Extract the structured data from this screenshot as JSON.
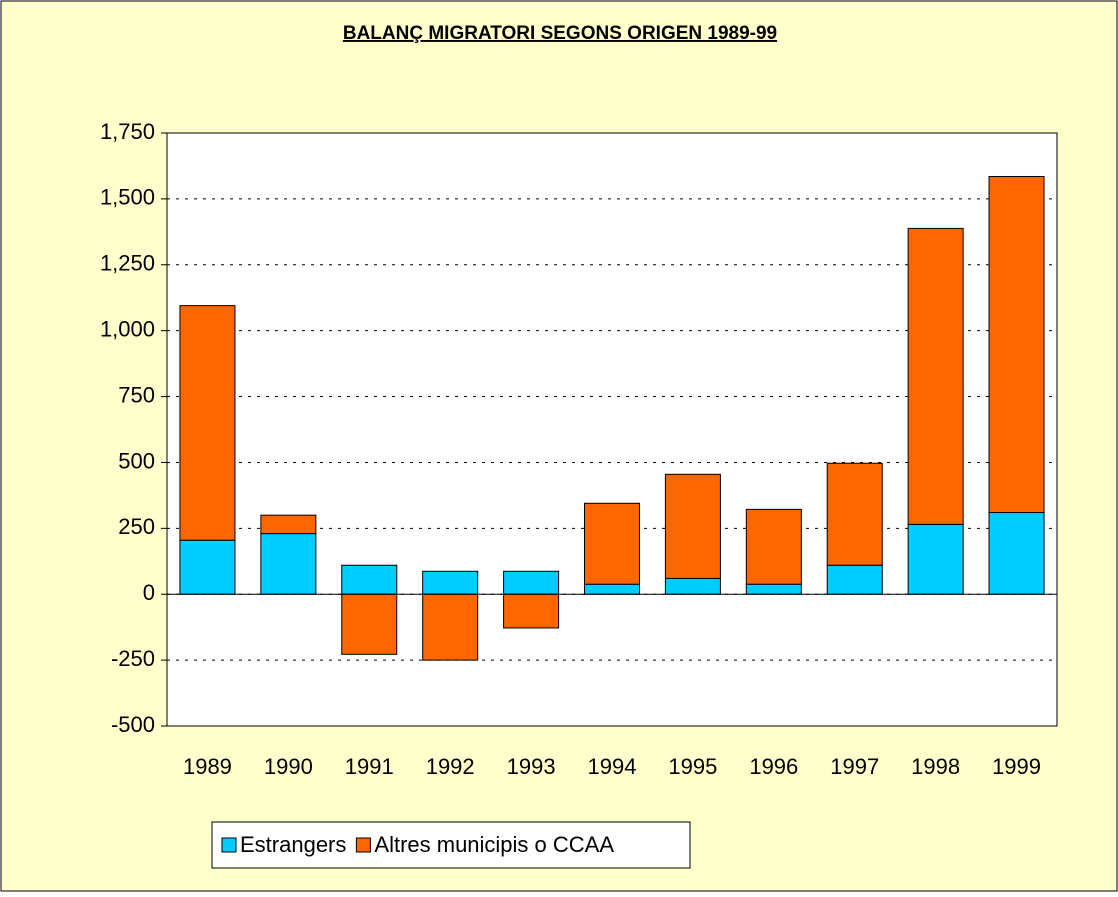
{
  "chart_data": {
    "type": "stacked-bar",
    "title": "BALANÇ MIGRATORI SEGONS ORIGEN 1989-99",
    "categories": [
      "1989",
      "1990",
      "1991",
      "1992",
      "1993",
      "1994",
      "1995",
      "1996",
      "1997",
      "1998",
      "1999"
    ],
    "series": [
      {
        "name": "Estrangers",
        "color": "#00ccff",
        "values": [
          205,
          230,
          110,
          87,
          87,
          38,
          60,
          38,
          110,
          265,
          310
        ]
      },
      {
        "name": "Altres municipis o CCAA",
        "color": "#ff6600",
        "values": [
          890,
          70,
          -228,
          -250,
          -128,
          307,
          395,
          284,
          387,
          1123,
          1275
        ]
      }
    ],
    "ylim": [
      -500,
      1750
    ],
    "yticks": [
      -500,
      -250,
      0,
      250,
      500,
      750,
      {
        "value": 1000,
        "label": "1,000"
      },
      {
        "value": 1250,
        "label": "1,250"
      },
      {
        "value": 1500,
        "label": "1,500"
      },
      {
        "value": 1750,
        "label": "1,750"
      }
    ],
    "grid": true,
    "legend": "bottom"
  }
}
